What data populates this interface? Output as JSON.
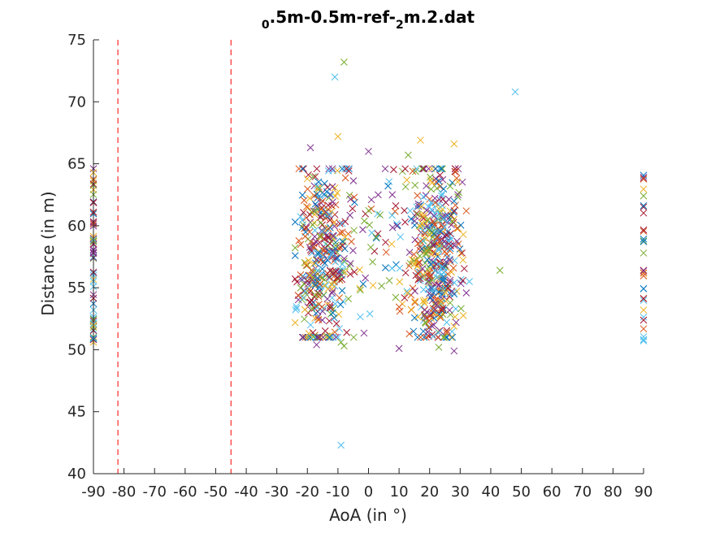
{
  "chart_data": {
    "type": "scatter",
    "title": {
      "prefix": "",
      "parts": [
        {
          "text": "0",
          "sub": true
        },
        {
          "text": ".5m-0.5m-ref-",
          "sub": false
        },
        {
          "text": "2",
          "sub": true
        },
        {
          "text": "m.2.dat",
          "sub": false
        }
      ]
    },
    "xlabel": "AoA (in °)",
    "ylabel": "Distance (in m)",
    "xlim": [
      -90,
      90
    ],
    "ylim": [
      40,
      75
    ],
    "xticks": [
      -90,
      -80,
      -70,
      -60,
      -50,
      -40,
      -30,
      -20,
      -10,
      0,
      10,
      20,
      30,
      40,
      50,
      60,
      70,
      80,
      90
    ],
    "yticks": [
      40,
      45,
      50,
      55,
      60,
      65,
      70,
      75
    ],
    "marker": "x",
    "grid": false,
    "legend": "none",
    "colors": [
      "#0072BD",
      "#D95319",
      "#EDB120",
      "#7E2F8E",
      "#77AC30",
      "#4DBEEE",
      "#A2142F"
    ],
    "reference_lines": [
      {
        "x": -82,
        "color": "#FF0000",
        "style": "dashed"
      },
      {
        "x": -45,
        "color": "#FF0000",
        "style": "dashed"
      }
    ],
    "cluster_estimate": {
      "left_edge": {
        "x": -90,
        "y_range": [
          50.3,
          64.8
        ],
        "count": 70
      },
      "right_edge": {
        "x": 90,
        "y_range": [
          50.4,
          64.2
        ],
        "count": 32
      },
      "center": {
        "x_range": [
          -24,
          32
        ],
        "y_range": [
          49.9,
          67.2
        ],
        "count": 900
      }
    },
    "outliers": [
      {
        "x": -8,
        "y": 73.2,
        "color": "#77AC30"
      },
      {
        "x": -11,
        "y": 72.0,
        "color": "#4DBEEE"
      },
      {
        "x": 48,
        "y": 70.8,
        "color": "#4DBEEE"
      },
      {
        "x": -9,
        "y": 42.3,
        "color": "#4DBEEE"
      },
      {
        "x": 43,
        "y": 56.4,
        "color": "#77AC30"
      },
      {
        "x": 33,
        "y": 55.5,
        "color": "#4DBEEE"
      },
      {
        "x": 17,
        "y": 66.9,
        "color": "#EDB120"
      },
      {
        "x": 28,
        "y": 66.6,
        "color": "#EDB120"
      },
      {
        "x": -10,
        "y": 67.2,
        "color": "#EDB120"
      },
      {
        "x": -19,
        "y": 66.3,
        "color": "#7E2F8E"
      },
      {
        "x": 0,
        "y": 66.0,
        "color": "#7E2F8E"
      },
      {
        "x": 13,
        "y": 65.7,
        "color": "#77AC30"
      },
      {
        "x": -9,
        "y": 50.6,
        "color": "#77AC30"
      },
      {
        "x": -8,
        "y": 50.3,
        "color": "#77AC30"
      },
      {
        "x": -17,
        "y": 50.4,
        "color": "#7E2F8E"
      },
      {
        "x": 10,
        "y": 50.1,
        "color": "#7E2F8E"
      },
      {
        "x": 28,
        "y": 49.9,
        "color": "#7E2F8E"
      },
      {
        "x": 23,
        "y": 50.2,
        "color": "#77AC30"
      },
      {
        "x": -10,
        "y": 51.0,
        "color": "#4DBEEE"
      },
      {
        "x": -24,
        "y": 60.3,
        "color": "#0072BD"
      },
      {
        "x": 32,
        "y": 61.2,
        "color": "#D95319"
      }
    ]
  }
}
